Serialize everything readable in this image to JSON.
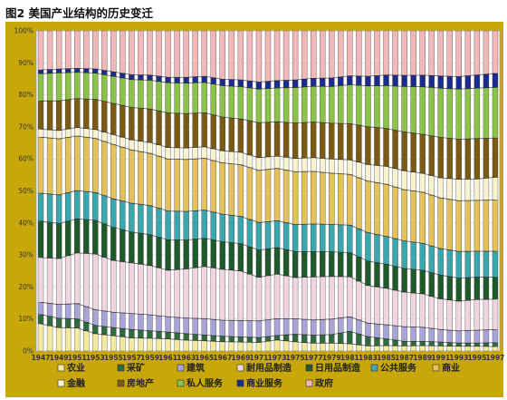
{
  "title": "图2  美国产业结构的历史变迁",
  "chart_data": {
    "type": "bar",
    "stacked": true,
    "percent": true,
    "x_labels": [
      "1947",
      "1949",
      "1951",
      "1953",
      "1955",
      "1957",
      "1959",
      "1961",
      "1963",
      "1965",
      "1967",
      "1969",
      "1971",
      "1973",
      "1975",
      "1977",
      "1979",
      "1981",
      "1983",
      "1985",
      "1987",
      "1989",
      "1991",
      "1993",
      "1995",
      "1997"
    ],
    "y_ticks": [
      "0%",
      "10%",
      "20%",
      "30%",
      "40%",
      "50%",
      "60%",
      "70%",
      "80%",
      "90%",
      "100%"
    ],
    "ylim": [
      0,
      100
    ],
    "grid": true,
    "legend_position": "bottom",
    "series": [
      {
        "name": "农业",
        "color": "#f4e9a0",
        "values": [
          8.5,
          7.3,
          7.2,
          5.4,
          4.8,
          4.1,
          4.0,
          3.8,
          3.4,
          3.2,
          2.9,
          2.8,
          2.7,
          3.5,
          2.9,
          2.5,
          2.5,
          2.3,
          1.6,
          1.7,
          1.6,
          1.7,
          1.6,
          1.5,
          1.5,
          1.4
        ]
      },
      {
        "name": "采矿",
        "color": "#2e6b3f",
        "values": [
          2.9,
          2.9,
          2.8,
          2.6,
          2.5,
          2.6,
          2.3,
          2.1,
          2.0,
          1.8,
          1.7,
          1.6,
          1.5,
          1.4,
          2.4,
          2.5,
          2.7,
          3.9,
          2.9,
          2.1,
          1.4,
          1.3,
          1.2,
          1.0,
          1.0,
          1.2
        ]
      },
      {
        "name": "建筑",
        "color": "#a8a4d8",
        "values": [
          3.8,
          4.3,
          4.8,
          4.9,
          4.8,
          5.0,
          5.0,
          4.8,
          4.9,
          5.1,
          5.0,
          5.1,
          5.2,
          5.3,
          4.9,
          4.8,
          4.9,
          4.6,
          4.2,
          4.4,
          4.6,
          4.4,
          3.9,
          3.8,
          4.0,
          4.1
        ]
      },
      {
        "name": "耐用品制造",
        "color": "#f0d4e0",
        "values": [
          14.0,
          14.3,
          15.8,
          17.4,
          16.2,
          15.8,
          15.4,
          14.5,
          15.3,
          16.3,
          15.9,
          15.5,
          13.6,
          14.1,
          13.0,
          13.6,
          13.5,
          12.6,
          11.8,
          11.4,
          10.8,
          10.4,
          9.6,
          9.3,
          9.6,
          9.5
        ]
      },
      {
        "name": "日用品制造",
        "color": "#1f5a2a",
        "values": [
          11.4,
          10.9,
          10.6,
          10.5,
          10.3,
          9.6,
          9.6,
          9.5,
          9.0,
          8.8,
          8.6,
          8.5,
          8.5,
          8.3,
          8.2,
          8.0,
          7.8,
          7.6,
          7.6,
          7.5,
          7.4,
          7.3,
          7.4,
          7.2,
          7.0,
          6.9
        ]
      },
      {
        "name": "公共服务",
        "color": "#3aa6ad",
        "values": [
          8.7,
          8.9,
          8.8,
          8.7,
          8.9,
          9.0,
          9.1,
          9.0,
          8.9,
          8.8,
          8.6,
          8.5,
          8.6,
          8.5,
          8.5,
          8.7,
          8.6,
          8.7,
          8.9,
          8.7,
          8.6,
          8.4,
          8.3,
          8.3,
          8.1,
          8.1
        ]
      },
      {
        "name": "商业",
        "color": "#e4c15a",
        "values": [
          17.5,
          17.5,
          17.0,
          16.9,
          17.0,
          16.6,
          16.3,
          16.2,
          16.2,
          16.2,
          16.0,
          16.1,
          16.3,
          16.5,
          16.7,
          16.6,
          16.2,
          16.0,
          16.1,
          16.3,
          16.0,
          15.9,
          15.8,
          15.9,
          15.9,
          16.0
        ]
      },
      {
        "name": "金融",
        "color": "#f7f2d0",
        "values": [
          2.5,
          2.6,
          2.7,
          2.8,
          3.1,
          3.2,
          3.4,
          3.6,
          3.6,
          3.6,
          3.8,
          3.9,
          4.0,
          3.9,
          4.2,
          4.4,
          4.5,
          4.6,
          5.2,
          5.6,
          5.9,
          5.9,
          6.3,
          6.7,
          6.7,
          7.1
        ]
      },
      {
        "name": "房地产",
        "color": "#7a5a14",
        "values": [
          8.8,
          9.2,
          9.0,
          9.4,
          9.7,
          10.1,
          10.4,
          10.8,
          10.7,
          10.6,
          10.5,
          10.4,
          10.9,
          10.8,
          11.2,
          11.2,
          11.3,
          11.4,
          11.8,
          11.8,
          12.1,
          12.1,
          12.6,
          12.5,
          12.6,
          12.3
        ]
      },
      {
        "name": "私人服务",
        "color": "#8dc24a",
        "values": [
          8.5,
          8.7,
          8.2,
          8.2,
          8.5,
          8.7,
          9.0,
          9.4,
          9.5,
          9.5,
          9.8,
          10.1,
          10.5,
          10.7,
          11.2,
          11.3,
          11.6,
          12.3,
          12.8,
          13.4,
          14.2,
          14.8,
          15.4,
          15.7,
          15.8,
          15.8
        ]
      },
      {
        "name": "商业服务",
        "color": "#1c2b8f",
        "values": [
          1.2,
          1.2,
          1.2,
          1.3,
          1.4,
          1.5,
          1.6,
          1.7,
          1.8,
          1.9,
          2.0,
          2.1,
          2.2,
          2.3,
          2.4,
          2.5,
          2.7,
          2.8,
          3.0,
          3.3,
          3.5,
          3.6,
          3.8,
          3.9,
          4.1,
          4.4
        ]
      },
      {
        "name": "政府",
        "color": "#f0b8b8",
        "values": [
          12.2,
          11.9,
          11.7,
          11.9,
          12.8,
          13.7,
          13.8,
          14.5,
          14.5,
          14.2,
          15.1,
          15.3,
          16.0,
          15.7,
          15.5,
          15.0,
          14.9,
          14.2,
          14.2,
          13.8,
          13.9,
          13.8,
          14.1,
          14.3,
          13.8,
          13.3
        ]
      }
    ]
  }
}
